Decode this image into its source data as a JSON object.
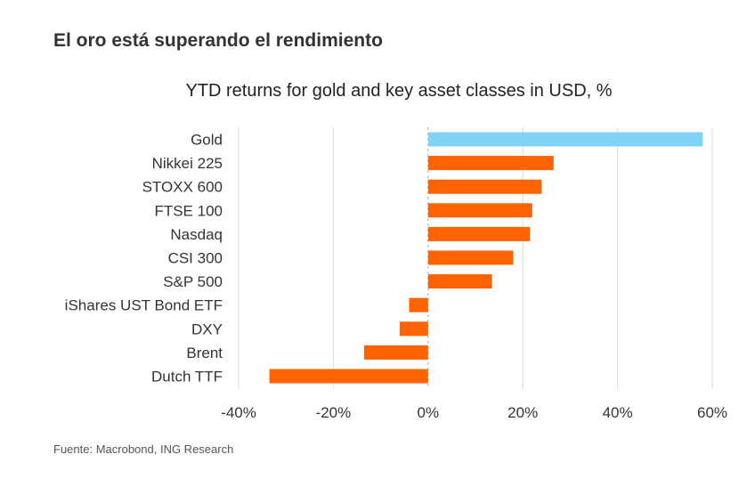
{
  "page": {
    "title": "El oro está superando el rendimiento",
    "source": "Fuente: Macrobond, ING Research"
  },
  "chart_data": {
    "type": "bar",
    "orientation": "horizontal",
    "title": "YTD returns for gold and key asset classes in USD, %",
    "xlabel": "",
    "ylabel": "",
    "xlim": [
      -40,
      60
    ],
    "xticks": [
      -40,
      -20,
      0,
      20,
      40,
      60
    ],
    "xtick_labels": [
      "-40%",
      "-20%",
      "0%",
      "20%",
      "40%",
      "60%"
    ],
    "grid": "vertical",
    "categories": [
      "Gold",
      "Nikkei 225",
      "STOXX 600",
      "FTSE 100",
      "Nasdaq",
      "CSI 300",
      "S&P 500",
      "iShares UST Bond ETF",
      "DXY",
      "Brent",
      "Dutch TTF"
    ],
    "values": [
      58,
      26.5,
      24,
      22,
      21.5,
      18,
      13.5,
      -4,
      -6,
      -13.5,
      -33.5
    ],
    "colors": [
      "#7FD3F7",
      "#FF6200",
      "#FF6200",
      "#FF6200",
      "#FF6200",
      "#FF6200",
      "#FF6200",
      "#FF6200",
      "#FF6200",
      "#FF6200",
      "#FF6200"
    ]
  }
}
